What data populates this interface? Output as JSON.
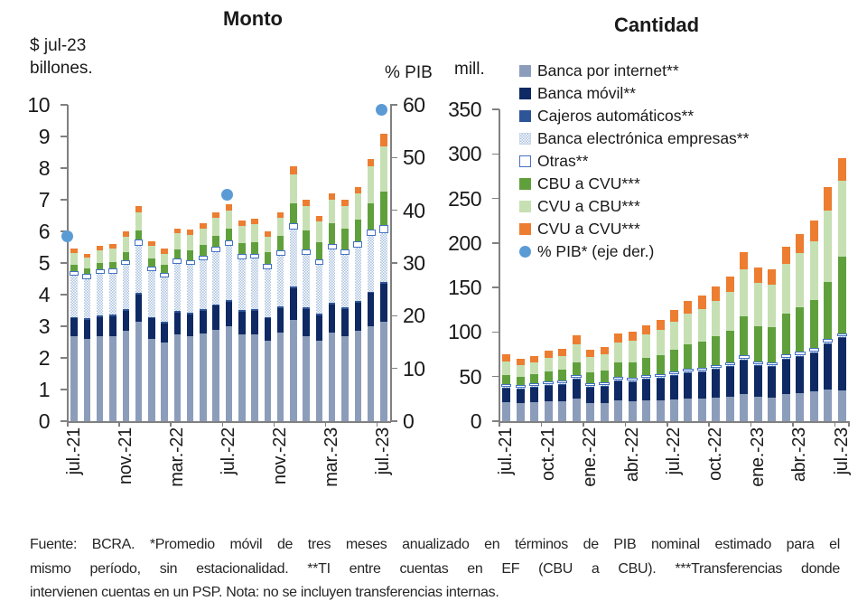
{
  "footnote": {
    "lines": [
      "Fuente: BCRA. *Promedio móvil de tres meses anualizado en términos de PIB nominal estimado para el",
      "mismo período, sin estacionalidad. **TI entre cuentas en EF (CBU a CBU). ***Transferencias donde",
      "intervienen cuentas en un PSP. Nota: no se incluyen transferencias internas."
    ]
  },
  "legend": {
    "items": [
      {
        "label": "Banca por internet**",
        "type": "square",
        "color": "#8C9DBB"
      },
      {
        "label": "Banca móvil**",
        "type": "square",
        "color": "#0E2963"
      },
      {
        "label": "Cajeros automáticos**",
        "type": "square",
        "color": "#2E5597"
      },
      {
        "label": "Banca electrónica empresas**",
        "type": "hatch",
        "color": "#A9C0DF"
      },
      {
        "label": "Otras**",
        "type": "outline",
        "color": "#FFFFFF",
        "border": "#4472C4"
      },
      {
        "label": "CBU a CVU***",
        "type": "square",
        "color": "#60A03C"
      },
      {
        "label": "CVU a CBU***",
        "type": "square",
        "color": "#C6E0B4"
      },
      {
        "label": "CVU a CVU***",
        "type": "square",
        "color": "#EC7D31"
      },
      {
        "label": "% PIB* (eje der.)",
        "type": "circle",
        "color": "#5B9BD5"
      }
    ]
  },
  "chart_data": [
    {
      "id": "monto",
      "type": "bar",
      "stacked": true,
      "title": "Monto",
      "ylabel_left_lines": [
        "$ jul-23",
        "billones."
      ],
      "ylabel_right": "% PIB",
      "ylim_left": [
        0,
        10
      ],
      "ylim_right": [
        0,
        60
      ],
      "yticks_left": [
        0,
        1,
        2,
        3,
        4,
        5,
        6,
        7,
        8,
        9,
        10
      ],
      "yticks_right": [
        0,
        10,
        20,
        30,
        40,
        50,
        60
      ],
      "grid": false,
      "legend_position": "overlay-right-chart",
      "categories": [
        "jul.-21",
        "ago.-21",
        "sep.-21",
        "oct.-21",
        "nov.-21",
        "dic.-21",
        "ene.-22",
        "feb.-22",
        "mar.-22",
        "abr.-22",
        "may.-22",
        "jun.-22",
        "jul.-22",
        "ago.-22",
        "sep.-22",
        "oct.-22",
        "nov.-22",
        "dic.-22",
        "ene.-23",
        "feb.-23",
        "mar.-23",
        "abr.-23",
        "may.-23",
        "jun.-23",
        "jul.-23"
      ],
      "xtick_every": 4,
      "xtick_labels_shown": [
        "jul.-21",
        "nov.-21",
        "mar.-22",
        "jul.-22",
        "nov.-22",
        "mar.-23",
        "jul.-23"
      ],
      "series": [
        {
          "name": "Banca por internet**",
          "color": "#8C9DBB",
          "pattern": "solid",
          "values": [
            2.7,
            2.6,
            2.7,
            2.7,
            2.85,
            3.15,
            2.6,
            2.5,
            2.75,
            2.7,
            2.78,
            2.9,
            3.0,
            2.75,
            2.75,
            2.55,
            2.8,
            3.2,
            2.7,
            2.55,
            2.8,
            2.7,
            2.85,
            3.0,
            3.15
          ]
        },
        {
          "name": "Banca móvil**",
          "color": "#0E2963",
          "pattern": "solid",
          "values": [
            0.55,
            0.6,
            0.6,
            0.62,
            0.65,
            0.85,
            0.65,
            0.6,
            0.68,
            0.68,
            0.7,
            0.75,
            0.78,
            0.72,
            0.73,
            0.7,
            0.78,
            1.0,
            0.85,
            0.8,
            0.88,
            0.85,
            0.9,
            1.05,
            1.2
          ]
        },
        {
          "name": "Cajeros automáticos**",
          "color": "#2E5597",
          "pattern": "solid",
          "values": [
            0.05,
            0.05,
            0.05,
            0.05,
            0.05,
            0.05,
            0.05,
            0.05,
            0.05,
            0.05,
            0.05,
            0.05,
            0.05,
            0.05,
            0.05,
            0.05,
            0.05,
            0.05,
            0.05,
            0.05,
            0.05,
            0.05,
            0.05,
            0.05,
            0.05
          ]
        },
        {
          "name": "Banca electrónica empresas**",
          "color": "#A9C0DF",
          "pattern": "hatch",
          "values": [
            1.3,
            1.25,
            1.3,
            1.3,
            1.4,
            1.5,
            1.45,
            1.4,
            1.5,
            1.5,
            1.55,
            1.65,
            1.7,
            1.6,
            1.6,
            1.5,
            1.6,
            1.8,
            1.65,
            1.55,
            1.7,
            1.65,
            1.7,
            1.75,
            1.55
          ]
        },
        {
          "name": "Otras**",
          "color": "#FFFFFF",
          "pattern": "outline",
          "values": [
            0.15,
            0.15,
            0.15,
            0.15,
            0.15,
            0.18,
            0.15,
            0.15,
            0.16,
            0.16,
            0.16,
            0.17,
            0.18,
            0.17,
            0.17,
            0.16,
            0.17,
            0.2,
            0.18,
            0.17,
            0.18,
            0.18,
            0.18,
            0.2,
            0.25
          ]
        },
        {
          "name": "CBU a CVU***",
          "color": "#60A03C",
          "pattern": "solid",
          "values": [
            0.18,
            0.18,
            0.2,
            0.22,
            0.25,
            0.3,
            0.25,
            0.25,
            0.3,
            0.3,
            0.32,
            0.35,
            0.38,
            0.35,
            0.37,
            0.38,
            0.45,
            0.65,
            0.6,
            0.55,
            0.65,
            0.65,
            0.7,
            0.85,
            1.05
          ]
        },
        {
          "name": "CVU a CBU***",
          "color": "#C6E0B4",
          "pattern": "solid",
          "values": [
            0.38,
            0.33,
            0.4,
            0.41,
            0.48,
            0.57,
            0.4,
            0.35,
            0.5,
            0.5,
            0.52,
            0.55,
            0.58,
            0.53,
            0.55,
            0.48,
            0.57,
            0.9,
            0.77,
            0.65,
            0.74,
            0.72,
            0.82,
            1.15,
            1.45
          ]
        },
        {
          "name": "CVU a CVU***",
          "color": "#EC7D31",
          "pattern": "solid",
          "values": [
            0.14,
            0.14,
            0.15,
            0.15,
            0.17,
            0.2,
            0.15,
            0.15,
            0.16,
            0.16,
            0.17,
            0.18,
            0.18,
            0.18,
            0.18,
            0.18,
            0.18,
            0.25,
            0.2,
            0.18,
            0.2,
            0.2,
            0.2,
            0.25,
            0.4
          ]
        }
      ],
      "pib_points": {
        "name": "% PIB* (eje der.)",
        "color": "#5B9BD5",
        "axis": "right",
        "points": [
          {
            "category": "jul.-21",
            "value": 35
          },
          {
            "category": "jul.-22",
            "value": 43
          },
          {
            "category": "jul.-23",
            "value": 59
          }
        ]
      }
    },
    {
      "id": "cantidad",
      "type": "bar",
      "stacked": true,
      "title": "Cantidad",
      "ylabel_left_lines": [
        "mill."
      ],
      "ylim_left": [
        0,
        350
      ],
      "yticks_left": [
        0,
        50,
        100,
        150,
        200,
        250,
        300,
        350
      ],
      "grid": false,
      "categories": [
        "jul.-21",
        "ago.-21",
        "sep.-21",
        "oct.-21",
        "nov.-21",
        "dic.-21",
        "ene.-22",
        "feb.-22",
        "mar.-22",
        "abr.-22",
        "may.-22",
        "jun.-22",
        "jul.-22",
        "ago.-22",
        "sep.-22",
        "oct.-22",
        "nov.-22",
        "dic.-22",
        "ene.-23",
        "feb.-23",
        "mar.-23",
        "abr.-23",
        "may.-23",
        "jun.-23",
        "jul.-23"
      ],
      "xtick_every": 3,
      "xtick_labels_shown": [
        "jul.-21",
        "oct.-21",
        "ene.-22",
        "abr.-22",
        "jul.-22",
        "oct.-22",
        "ene.-23",
        "abr.-23",
        "jul.-23"
      ],
      "series": [
        {
          "name": "Banca por internet**",
          "color": "#8C9DBB",
          "pattern": "solid",
          "values": [
            21,
            20,
            21,
            22,
            22,
            25,
            20,
            20,
            23,
            22,
            23,
            23,
            24,
            25,
            25,
            26,
            27,
            30,
            27,
            26,
            30,
            31,
            33,
            36,
            35
          ]
        },
        {
          "name": "Banca móvil**",
          "color": "#0E2963",
          "pattern": "solid",
          "values": [
            16,
            16,
            17,
            18,
            19,
            22,
            18,
            19,
            22,
            22,
            24,
            25,
            27,
            29,
            30,
            32,
            34,
            38,
            35,
            35,
            39,
            41,
            43,
            50,
            58
          ]
        },
        {
          "name": "Cajeros automáticos**",
          "color": "#2E5597",
          "pattern": "solid",
          "values": [
            1,
            1,
            1,
            1,
            1,
            1,
            1,
            1,
            1,
            1,
            1,
            1,
            1,
            1,
            1,
            1,
            1,
            1,
            1,
            1,
            1,
            1,
            1,
            1,
            1
          ]
        },
        {
          "name": "Banca electrónica empresas**",
          "color": "#A9C0DF",
          "pattern": "hatch",
          "values": [
            1,
            1,
            1,
            1,
            1,
            1,
            1,
            1,
            1,
            1,
            1,
            1,
            1,
            1,
            1,
            1,
            1,
            1,
            1,
            1,
            1,
            1,
            1,
            1,
            1
          ]
        },
        {
          "name": "Otras**",
          "color": "#FFFFFF",
          "pattern": "outline",
          "values": [
            3,
            3,
            3,
            3,
            3,
            3,
            3,
            3,
            3,
            3,
            3,
            3,
            3,
            3,
            3,
            3,
            3,
            4,
            3,
            3,
            4,
            4,
            4,
            4,
            3
          ]
        },
        {
          "name": "CBU a CVU***",
          "color": "#60A03C",
          "pattern": "solid",
          "values": [
            10,
            9,
            10,
            11,
            12,
            14,
            12,
            13,
            16,
            17,
            19,
            21,
            24,
            27,
            29,
            32,
            35,
            44,
            40,
            40,
            46,
            50,
            54,
            64,
            87
          ]
        },
        {
          "name": "CVU a CBU***",
          "color": "#C6E0B4",
          "pattern": "solid",
          "values": [
            15,
            13,
            13,
            15,
            15,
            20,
            17,
            18,
            22,
            24,
            26,
            28,
            32,
            35,
            37,
            40,
            44,
            52,
            48,
            47,
            56,
            61,
            66,
            80,
            85
          ]
        },
        {
          "name": "CVU a CVU***",
          "color": "#EC7D31",
          "pattern": "solid",
          "values": [
            8,
            7,
            7,
            8,
            8,
            10,
            8,
            8,
            10,
            10,
            11,
            12,
            13,
            14,
            15,
            16,
            17,
            20,
            17,
            17,
            19,
            21,
            23,
            27,
            25
          ]
        }
      ]
    }
  ]
}
